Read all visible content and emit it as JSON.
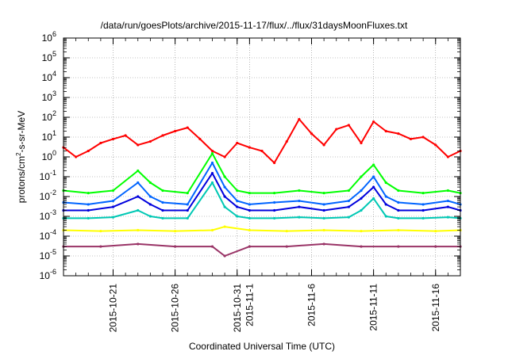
{
  "chart_data": {
    "type": "line",
    "title": "/data/run/goesPlots/archive/2015-11-17/flux/../flux/31daysMoonFluxes.txt",
    "xlabel": "Coordinated Universal Time (UTC)",
    "ylabel": "protons/cm2-s-sr-MeV",
    "ylabel_parts": {
      "pre": "protons/cm",
      "sup": "2",
      "post": "-s-sr-MeV"
    },
    "y_scale": "log",
    "ylim": [
      1e-06,
      1000000.0
    ],
    "xlim": [
      "2015-10-17",
      "2015-11-18"
    ],
    "grid": true,
    "legend": "none",
    "y_ticks": [
      {
        "value": 1e-06,
        "base": "10",
        "exp": "-6"
      },
      {
        "value": 1e-05,
        "base": "10",
        "exp": "-5"
      },
      {
        "value": 0.0001,
        "base": "10",
        "exp": "-4"
      },
      {
        "value": 0.001,
        "base": "10",
        "exp": "-3"
      },
      {
        "value": 0.01,
        "base": "10",
        "exp": "-2"
      },
      {
        "value": 0.1,
        "base": "10",
        "exp": "-1"
      },
      {
        "value": 1.0,
        "base": "10",
        "exp": "0"
      },
      {
        "value": 10.0,
        "base": "10",
        "exp": "1"
      },
      {
        "value": 100.0,
        "base": "10",
        "exp": "2"
      },
      {
        "value": 1000.0,
        "base": "10",
        "exp": "3"
      },
      {
        "value": 10000.0,
        "base": "10",
        "exp": "4"
      },
      {
        "value": 100000.0,
        "base": "10",
        "exp": "5"
      },
      {
        "value": 1000000.0,
        "base": "10",
        "exp": "6"
      }
    ],
    "x_ticks": [
      {
        "value": "2015-10-21",
        "label": "2015-10-21"
      },
      {
        "value": "2015-10-26",
        "label": "2015-10-26"
      },
      {
        "value": "2015-10-31",
        "label": "2015-10-31"
      },
      {
        "value": "2015-11-01",
        "label": "2015-11-1"
      },
      {
        "value": "2015-11-06",
        "label": "2015-11-6"
      },
      {
        "value": "2015-11-11",
        "label": "2015-11-11"
      },
      {
        "value": "2015-11-16",
        "label": "2015-11-16"
      }
    ],
    "series": [
      {
        "color": "#ff0000",
        "x": [
          "2015-10-17",
          "2015-10-18",
          "2015-10-19",
          "2015-10-20",
          "2015-10-21",
          "2015-10-22",
          "2015-10-23",
          "2015-10-24",
          "2015-10-25",
          "2015-10-26",
          "2015-10-27",
          "2015-10-28",
          "2015-10-29",
          "2015-10-30",
          "2015-10-31",
          "2015-11-01",
          "2015-11-02",
          "2015-11-03",
          "2015-11-04",
          "2015-11-05",
          "2015-11-06",
          "2015-11-07",
          "2015-11-08",
          "2015-11-09",
          "2015-11-10",
          "2015-11-11",
          "2015-11-12",
          "2015-11-13",
          "2015-11-14",
          "2015-11-15",
          "2015-11-16",
          "2015-11-17",
          "2015-11-18"
        ],
        "y": [
          3,
          1,
          2,
          5,
          8,
          12,
          4,
          6,
          12,
          20,
          30,
          8,
          2,
          1,
          5,
          3,
          2,
          0.5,
          6,
          80,
          15,
          4,
          25,
          40,
          5,
          60,
          20,
          15,
          8,
          10,
          4,
          1,
          2
        ]
      },
      {
        "color": "#00ff00",
        "x": [
          "2015-10-17",
          "2015-10-19",
          "2015-10-21",
          "2015-10-23",
          "2015-10-24",
          "2015-10-25",
          "2015-10-27",
          "2015-10-29",
          "2015-10-30",
          "2015-10-31",
          "2015-11-01",
          "2015-11-03",
          "2015-11-05",
          "2015-11-07",
          "2015-11-09",
          "2015-11-10",
          "2015-11-11",
          "2015-11-12",
          "2015-11-13",
          "2015-11-15",
          "2015-11-17",
          "2015-11-18"
        ],
        "y": [
          0.02,
          0.015,
          0.02,
          0.2,
          0.05,
          0.02,
          0.015,
          1.5,
          0.1,
          0.02,
          0.015,
          0.015,
          0.02,
          0.015,
          0.02,
          0.1,
          0.4,
          0.05,
          0.02,
          0.015,
          0.02,
          0.015
        ]
      },
      {
        "color": "#0064ff",
        "x": [
          "2015-10-17",
          "2015-10-19",
          "2015-10-21",
          "2015-10-23",
          "2015-10-24",
          "2015-10-25",
          "2015-10-27",
          "2015-10-29",
          "2015-10-30",
          "2015-10-31",
          "2015-11-01",
          "2015-11-03",
          "2015-11-05",
          "2015-11-07",
          "2015-11-09",
          "2015-11-10",
          "2015-11-11",
          "2015-11-12",
          "2015-11-13",
          "2015-11-15",
          "2015-11-17",
          "2015-11-18"
        ],
        "y": [
          0.005,
          0.004,
          0.006,
          0.05,
          0.01,
          0.005,
          0.004,
          0.5,
          0.03,
          0.006,
          0.004,
          0.005,
          0.006,
          0.004,
          0.006,
          0.02,
          0.1,
          0.01,
          0.005,
          0.004,
          0.006,
          0.004
        ]
      },
      {
        "color": "#0000dd",
        "x": [
          "2015-10-17",
          "2015-10-19",
          "2015-10-21",
          "2015-10-23",
          "2015-10-24",
          "2015-10-25",
          "2015-10-27",
          "2015-10-29",
          "2015-10-30",
          "2015-10-31",
          "2015-11-01",
          "2015-11-03",
          "2015-11-05",
          "2015-11-07",
          "2015-11-09",
          "2015-11-10",
          "2015-11-11",
          "2015-11-12",
          "2015-11-13",
          "2015-11-15",
          "2015-11-17",
          "2015-11-18"
        ],
        "y": [
          0.002,
          0.002,
          0.003,
          0.01,
          0.004,
          0.002,
          0.002,
          0.15,
          0.01,
          0.003,
          0.002,
          0.002,
          0.003,
          0.002,
          0.003,
          0.008,
          0.03,
          0.004,
          0.002,
          0.002,
          0.003,
          0.002
        ]
      },
      {
        "color": "#00c8b4",
        "x": [
          "2015-10-17",
          "2015-10-19",
          "2015-10-21",
          "2015-10-23",
          "2015-10-24",
          "2015-10-25",
          "2015-10-27",
          "2015-10-29",
          "2015-10-30",
          "2015-10-31",
          "2015-11-01",
          "2015-11-03",
          "2015-11-05",
          "2015-11-07",
          "2015-11-09",
          "2015-11-10",
          "2015-11-11",
          "2015-11-12",
          "2015-11-13",
          "2015-11-15",
          "2015-11-17",
          "2015-11-18"
        ],
        "y": [
          0.0008,
          0.0008,
          0.0009,
          0.002,
          0.001,
          0.0008,
          0.0008,
          0.05,
          0.003,
          0.001,
          0.0008,
          0.0008,
          0.0009,
          0.0008,
          0.0009,
          0.002,
          0.008,
          0.001,
          0.0008,
          0.0008,
          0.0009,
          0.0008
        ]
      },
      {
        "color": "#ffff00",
        "x": [
          "2015-10-17",
          "2015-10-20",
          "2015-10-23",
          "2015-10-26",
          "2015-10-29",
          "2015-10-30",
          "2015-11-01",
          "2015-11-04",
          "2015-11-07",
          "2015-11-10",
          "2015-11-13",
          "2015-11-16",
          "2015-11-18"
        ],
        "y": [
          0.0002,
          0.00018,
          0.0002,
          0.00018,
          0.0002,
          0.0003,
          0.0002,
          0.00018,
          0.0002,
          0.00018,
          0.0002,
          0.00018,
          0.0002
        ]
      },
      {
        "color": "#993366",
        "x": [
          "2015-10-17",
          "2015-10-20",
          "2015-10-23",
          "2015-10-26",
          "2015-10-29",
          "2015-10-30",
          "2015-11-01",
          "2015-11-04",
          "2015-11-07",
          "2015-11-10",
          "2015-11-13",
          "2015-11-16",
          "2015-11-18"
        ],
        "y": [
          3e-05,
          3e-05,
          4e-05,
          3e-05,
          3e-05,
          1e-05,
          3e-05,
          3e-05,
          4e-05,
          3e-05,
          3e-05,
          3e-05,
          3e-05
        ]
      }
    ]
  }
}
